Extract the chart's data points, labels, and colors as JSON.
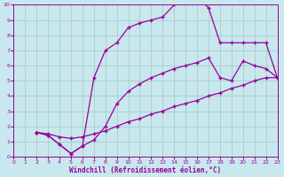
{
  "xlabel": "Windchill (Refroidissement éolien,°C)",
  "bg_color": "#c8e8ee",
  "line_color": "#990099",
  "grid_color": "#aacccc",
  "xlim": [
    0,
    23
  ],
  "ylim": [
    0,
    10
  ],
  "xticks": [
    0,
    1,
    2,
    3,
    4,
    5,
    6,
    7,
    8,
    9,
    10,
    11,
    12,
    13,
    14,
    15,
    16,
    17,
    18,
    19,
    20,
    21,
    22,
    23
  ],
  "yticks": [
    0,
    1,
    2,
    3,
    4,
    5,
    6,
    7,
    8,
    9,
    10
  ],
  "curve1_x": [
    2,
    3,
    4,
    5,
    6,
    7,
    8,
    9,
    10,
    11,
    12,
    13,
    14,
    15,
    16,
    17,
    18,
    19,
    20,
    21,
    22,
    23
  ],
  "curve1_y": [
    1.6,
    1.5,
    1.3,
    1.2,
    1.3,
    1.5,
    1.7,
    2.0,
    2.3,
    2.5,
    2.8,
    3.0,
    3.3,
    3.5,
    3.7,
    4.0,
    4.2,
    4.5,
    4.7,
    5.0,
    5.2,
    5.2
  ],
  "curve2_x": [
    2,
    3,
    4,
    5,
    6,
    7,
    8,
    9,
    10,
    11,
    12,
    13,
    14,
    15,
    16,
    17,
    18,
    19,
    20,
    21,
    22,
    23
  ],
  "curve2_y": [
    1.6,
    1.4,
    0.8,
    0.2,
    0.7,
    1.1,
    2.0,
    3.5,
    4.3,
    4.8,
    5.2,
    5.5,
    5.8,
    6.0,
    6.2,
    6.5,
    5.2,
    5.0,
    6.3,
    6.0,
    5.8,
    5.2
  ],
  "curve3_x": [
    2,
    3,
    4,
    5,
    6,
    7,
    8,
    9,
    10,
    11,
    12,
    13,
    14,
    15,
    16,
    17,
    18,
    19,
    20,
    21,
    22,
    23
  ],
  "curve3_y": [
    1.6,
    1.4,
    0.8,
    0.2,
    0.7,
    5.2,
    7.0,
    7.5,
    8.5,
    8.8,
    9.0,
    9.2,
    10.0,
    10.2,
    10.5,
    9.8,
    7.5,
    7.5,
    7.5,
    7.5,
    7.5,
    5.2
  ]
}
